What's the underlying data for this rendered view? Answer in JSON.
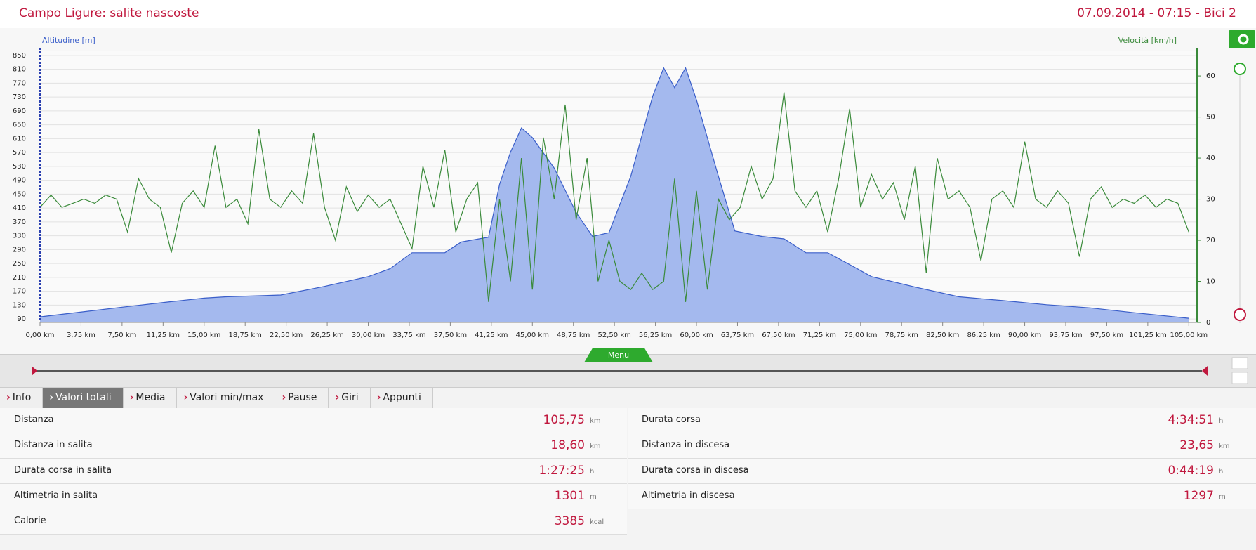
{
  "header": {
    "title": "Campo Ligure: salite nascoste",
    "info": "07.09.2014 - 07:15 - Bici 2"
  },
  "chart_data": {
    "type": "line",
    "y_label": "Altitudine [m]",
    "y2_label": "Velocità [km/h]",
    "xlim": [
      0,
      105.75
    ],
    "ylim": [
      80,
      862
    ],
    "y2lim": [
      0,
      66
    ],
    "xticks": [
      {
        "value": 0,
        "label": "0,00 km"
      },
      {
        "value": 3.75,
        "label": "3,75 km"
      },
      {
        "value": 7.5,
        "label": "7,50 km"
      },
      {
        "value": 11.25,
        "label": "11,25 km"
      },
      {
        "value": 15,
        "label": "15,00 km"
      },
      {
        "value": 18.75,
        "label": "18,75 km"
      },
      {
        "value": 22.5,
        "label": "22,50 km"
      },
      {
        "value": 26.25,
        "label": "26,25 km"
      },
      {
        "value": 30,
        "label": "30,00 km"
      },
      {
        "value": 33.75,
        "label": "33,75 km"
      },
      {
        "value": 37.5,
        "label": "37,50 km"
      },
      {
        "value": 41.25,
        "label": "41,25 km"
      },
      {
        "value": 45,
        "label": "45,00 km"
      },
      {
        "value": 48.75,
        "label": "48,75 km"
      },
      {
        "value": 52.5,
        "label": "52,50 km"
      },
      {
        "value": 56.25,
        "label": "56,25 km"
      },
      {
        "value": 60,
        "label": "60,00 km"
      },
      {
        "value": 63.75,
        "label": "63,75 km"
      },
      {
        "value": 67.5,
        "label": "67,50 km"
      },
      {
        "value": 71.25,
        "label": "71,25 km"
      },
      {
        "value": 75,
        "label": "75,00 km"
      },
      {
        "value": 78.75,
        "label": "78,75 km"
      },
      {
        "value": 82.5,
        "label": "82,50 km"
      },
      {
        "value": 86.25,
        "label": "86,25 km"
      },
      {
        "value": 90,
        "label": "90,00 km"
      },
      {
        "value": 93.75,
        "label": "93,75 km"
      },
      {
        "value": 97.5,
        "label": "97,50 km"
      },
      {
        "value": 101.25,
        "label": "101,25 km"
      },
      {
        "value": 105,
        "label": "105,00 km"
      }
    ],
    "yticks": [
      90,
      130,
      170,
      210,
      250,
      290,
      330,
      370,
      410,
      450,
      490,
      530,
      570,
      610,
      650,
      690,
      730,
      770,
      810,
      850
    ],
    "y2ticks": [
      0,
      10,
      20,
      30,
      40,
      50,
      60
    ],
    "grid": true,
    "series": [
      {
        "name": "Altitudine",
        "color": "#3a5ec9",
        "fill": "#a4b9ee",
        "x": [
          0,
          7.5,
          12,
          15,
          17,
          22,
          26,
          30,
          32,
          34,
          37,
          38.5,
          41,
          42,
          43,
          44,
          45,
          47,
          49,
          50.5,
          52,
          54,
          56,
          57,
          58,
          59,
          60,
          62,
          63.5,
          66,
          68,
          70,
          72,
          74,
          76,
          80,
          84,
          88,
          92,
          96,
          100,
          105
        ],
        "values": [
          96,
          124,
          140,
          150,
          154,
          159,
          184,
          212,
          235,
          281,
          281,
          312,
          326,
          478,
          571,
          641,
          613,
          525,
          397,
          328,
          339,
          502,
          733,
          814,
          757,
          814,
          722,
          502,
          344,
          328,
          321,
          281,
          281,
          247,
          212,
          182,
          154,
          143,
          131,
          122,
          108,
          92
        ]
      },
      {
        "name": "Velocità",
        "color": "#3a8a3a",
        "axis": "y2",
        "x": [
          0,
          1,
          2,
          3,
          4,
          5,
          6,
          7,
          8,
          9,
          10,
          11,
          12,
          13,
          14,
          15,
          16,
          17,
          18,
          19,
          20,
          21,
          22,
          23,
          24,
          25,
          26,
          27,
          28,
          29,
          30,
          31,
          32,
          33,
          34,
          35,
          36,
          37,
          38,
          39,
          40,
          41,
          42,
          43,
          44,
          45,
          46,
          47,
          48,
          49,
          50,
          51,
          52,
          53,
          54,
          55,
          56,
          57,
          58,
          59,
          60,
          61,
          62,
          63,
          64,
          65,
          66,
          67,
          68,
          69,
          70,
          71,
          72,
          73,
          74,
          75,
          76,
          77,
          78,
          79,
          80,
          81,
          82,
          83,
          84,
          85,
          86,
          87,
          88,
          89,
          90,
          91,
          92,
          93,
          94,
          95,
          96,
          97,
          98,
          99,
          100,
          101,
          102,
          103,
          104,
          105
        ],
        "values": [
          28,
          31,
          28,
          29,
          30,
          29,
          31,
          30,
          22,
          35,
          30,
          28,
          17,
          29,
          32,
          28,
          43,
          28,
          30,
          24,
          47,
          30,
          28,
          32,
          29,
          46,
          28,
          20,
          33,
          27,
          31,
          28,
          30,
          24,
          18,
          38,
          28,
          42,
          22,
          30,
          34,
          5,
          30,
          10,
          40,
          8,
          45,
          30,
          53,
          25,
          40,
          10,
          20,
          10,
          8,
          12,
          8,
          10,
          35,
          5,
          32,
          8,
          30,
          25,
          28,
          38,
          30,
          35,
          56,
          32,
          28,
          32,
          22,
          35,
          52,
          28,
          36,
          30,
          34,
          25,
          38,
          12,
          40,
          30,
          32,
          28,
          15,
          30,
          32,
          28,
          44,
          30,
          28,
          32,
          29,
          16,
          30,
          33,
          28,
          30,
          29,
          31,
          28,
          30,
          29,
          22
        ]
      }
    ]
  },
  "menu": "Menu",
  "tabs": [
    "Info",
    "Valori totali",
    "Media",
    "Valori min/max",
    "Pause",
    "Giri",
    "Appunti"
  ],
  "active_tab": 1,
  "stats_left": [
    [
      "Distanza",
      "105,75",
      "km"
    ],
    [
      "Distanza in salita",
      "18,60",
      "km"
    ],
    [
      "Durata corsa in salita",
      "1:27:25",
      "h"
    ],
    [
      "Altimetria in salita",
      "1301",
      "m"
    ],
    [
      "Calorie",
      "3385",
      "kcal"
    ]
  ],
  "stats_right": [
    [
      "Durata corsa",
      "4:34:51",
      "h"
    ],
    [
      "Distanza in discesa",
      "23,65",
      "km"
    ],
    [
      "Durata corsa in discesa",
      "0:44:19",
      "h"
    ],
    [
      "Altimetria in discesa",
      "1297",
      "m"
    ]
  ]
}
